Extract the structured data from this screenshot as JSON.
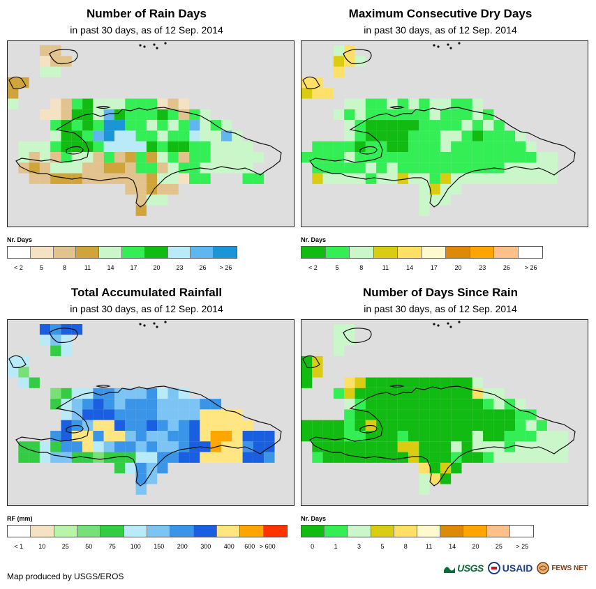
{
  "credit": "Map produced by USGS/EROS",
  "logos": {
    "usgs": "USGS",
    "usaid": "USAID",
    "fews": "FEWS NET"
  },
  "panels": [
    {
      "title": "Number of Rain Days",
      "subtitle": "in past 30 days, as of 12 Sep. 2014",
      "legend_title": "Nr. Days",
      "legend_colors": [
        "#ffffff",
        "#f5e2c3",
        "#e2c38e",
        "#cfa43a",
        "#c9f7c9",
        "#33ee55",
        "#11bb11",
        "#b8eaf8",
        "#5fb6f0",
        "#1a96d8"
      ],
      "tick_labels": [
        "< 2",
        "5",
        "8",
        "11",
        "14",
        "17",
        "20",
        "23",
        "26",
        "> 26"
      ],
      "map_grid": [
        "..BCC.......",
        "..C.........",
        "BBCBC.......",
        "...HH.......",
        "...EF.FFFF..",
        "....G.GGGF..",
        "..EFGGGFEF..",
        "..EJIFGGFFFF",
        "..FIJHHFFJFF",
        "..FHHHIGGFFFE",
        "..FFFFFFFFFFF",
        "..CCCHHFFGGGFE",
        "...CCCCCFF.FE",
        ".....CCCC....",
        "......C......"
      ]
    },
    {
      "title": "Maximum Consecutive Dry Days",
      "subtitle": "in past 30 days, as of 12 Sep. 2014",
      "legend_title": "Nr. Days",
      "legend_colors": [
        "#11bb11",
        "#33ee55",
        "#c9f7c9",
        "#d9cc11",
        "#ffe066",
        "#fffacd",
        "#dd8a0a",
        "#ffa500",
        "#ffc08a",
        "#ffffff"
      ],
      "tick_labels": [
        "< 2",
        "5",
        "8",
        "11",
        "14",
        "17",
        "20",
        "23",
        "26",
        "> 26"
      ],
      "map_grid": []
    },
    {
      "title": "Total Accumulated Rainfall",
      "subtitle": "in past 30 days, as of 12 Sep. 2014",
      "legend_title": "RF (mm)",
      "legend_colors": [
        "#ffffff",
        "#f5e2c3",
        "#b8f5a8",
        "#77e077",
        "#33cc44",
        "#b8eaf8",
        "#7cc4f4",
        "#3a94e8",
        "#1a5fe0",
        "#ffe680",
        "#ffa500",
        "#ff3300"
      ],
      "tick_labels": [
        "< 1",
        "10",
        "25",
        "50",
        "75",
        "100",
        "150",
        "200",
        "300",
        "400",
        "600",
        "> 600"
      ],
      "map_grid": []
    },
    {
      "title": "Number of Days Since Rain",
      "subtitle": "in past 30 days, as of 12 Sep. 2014",
      "legend_title": "Nr. Days",
      "legend_colors": [
        "#11bb11",
        "#33ee55",
        "#c9f7c9",
        "#d9cc11",
        "#ffe066",
        "#fffacd",
        "#dd8a0a",
        "#ffa500",
        "#ffc08a",
        "#ffffff"
      ],
      "tick_labels": [
        "0",
        "1",
        "3",
        "5",
        "8",
        "11",
        "14",
        "20",
        "25",
        "> 25"
      ],
      "map_grid": []
    }
  ]
}
